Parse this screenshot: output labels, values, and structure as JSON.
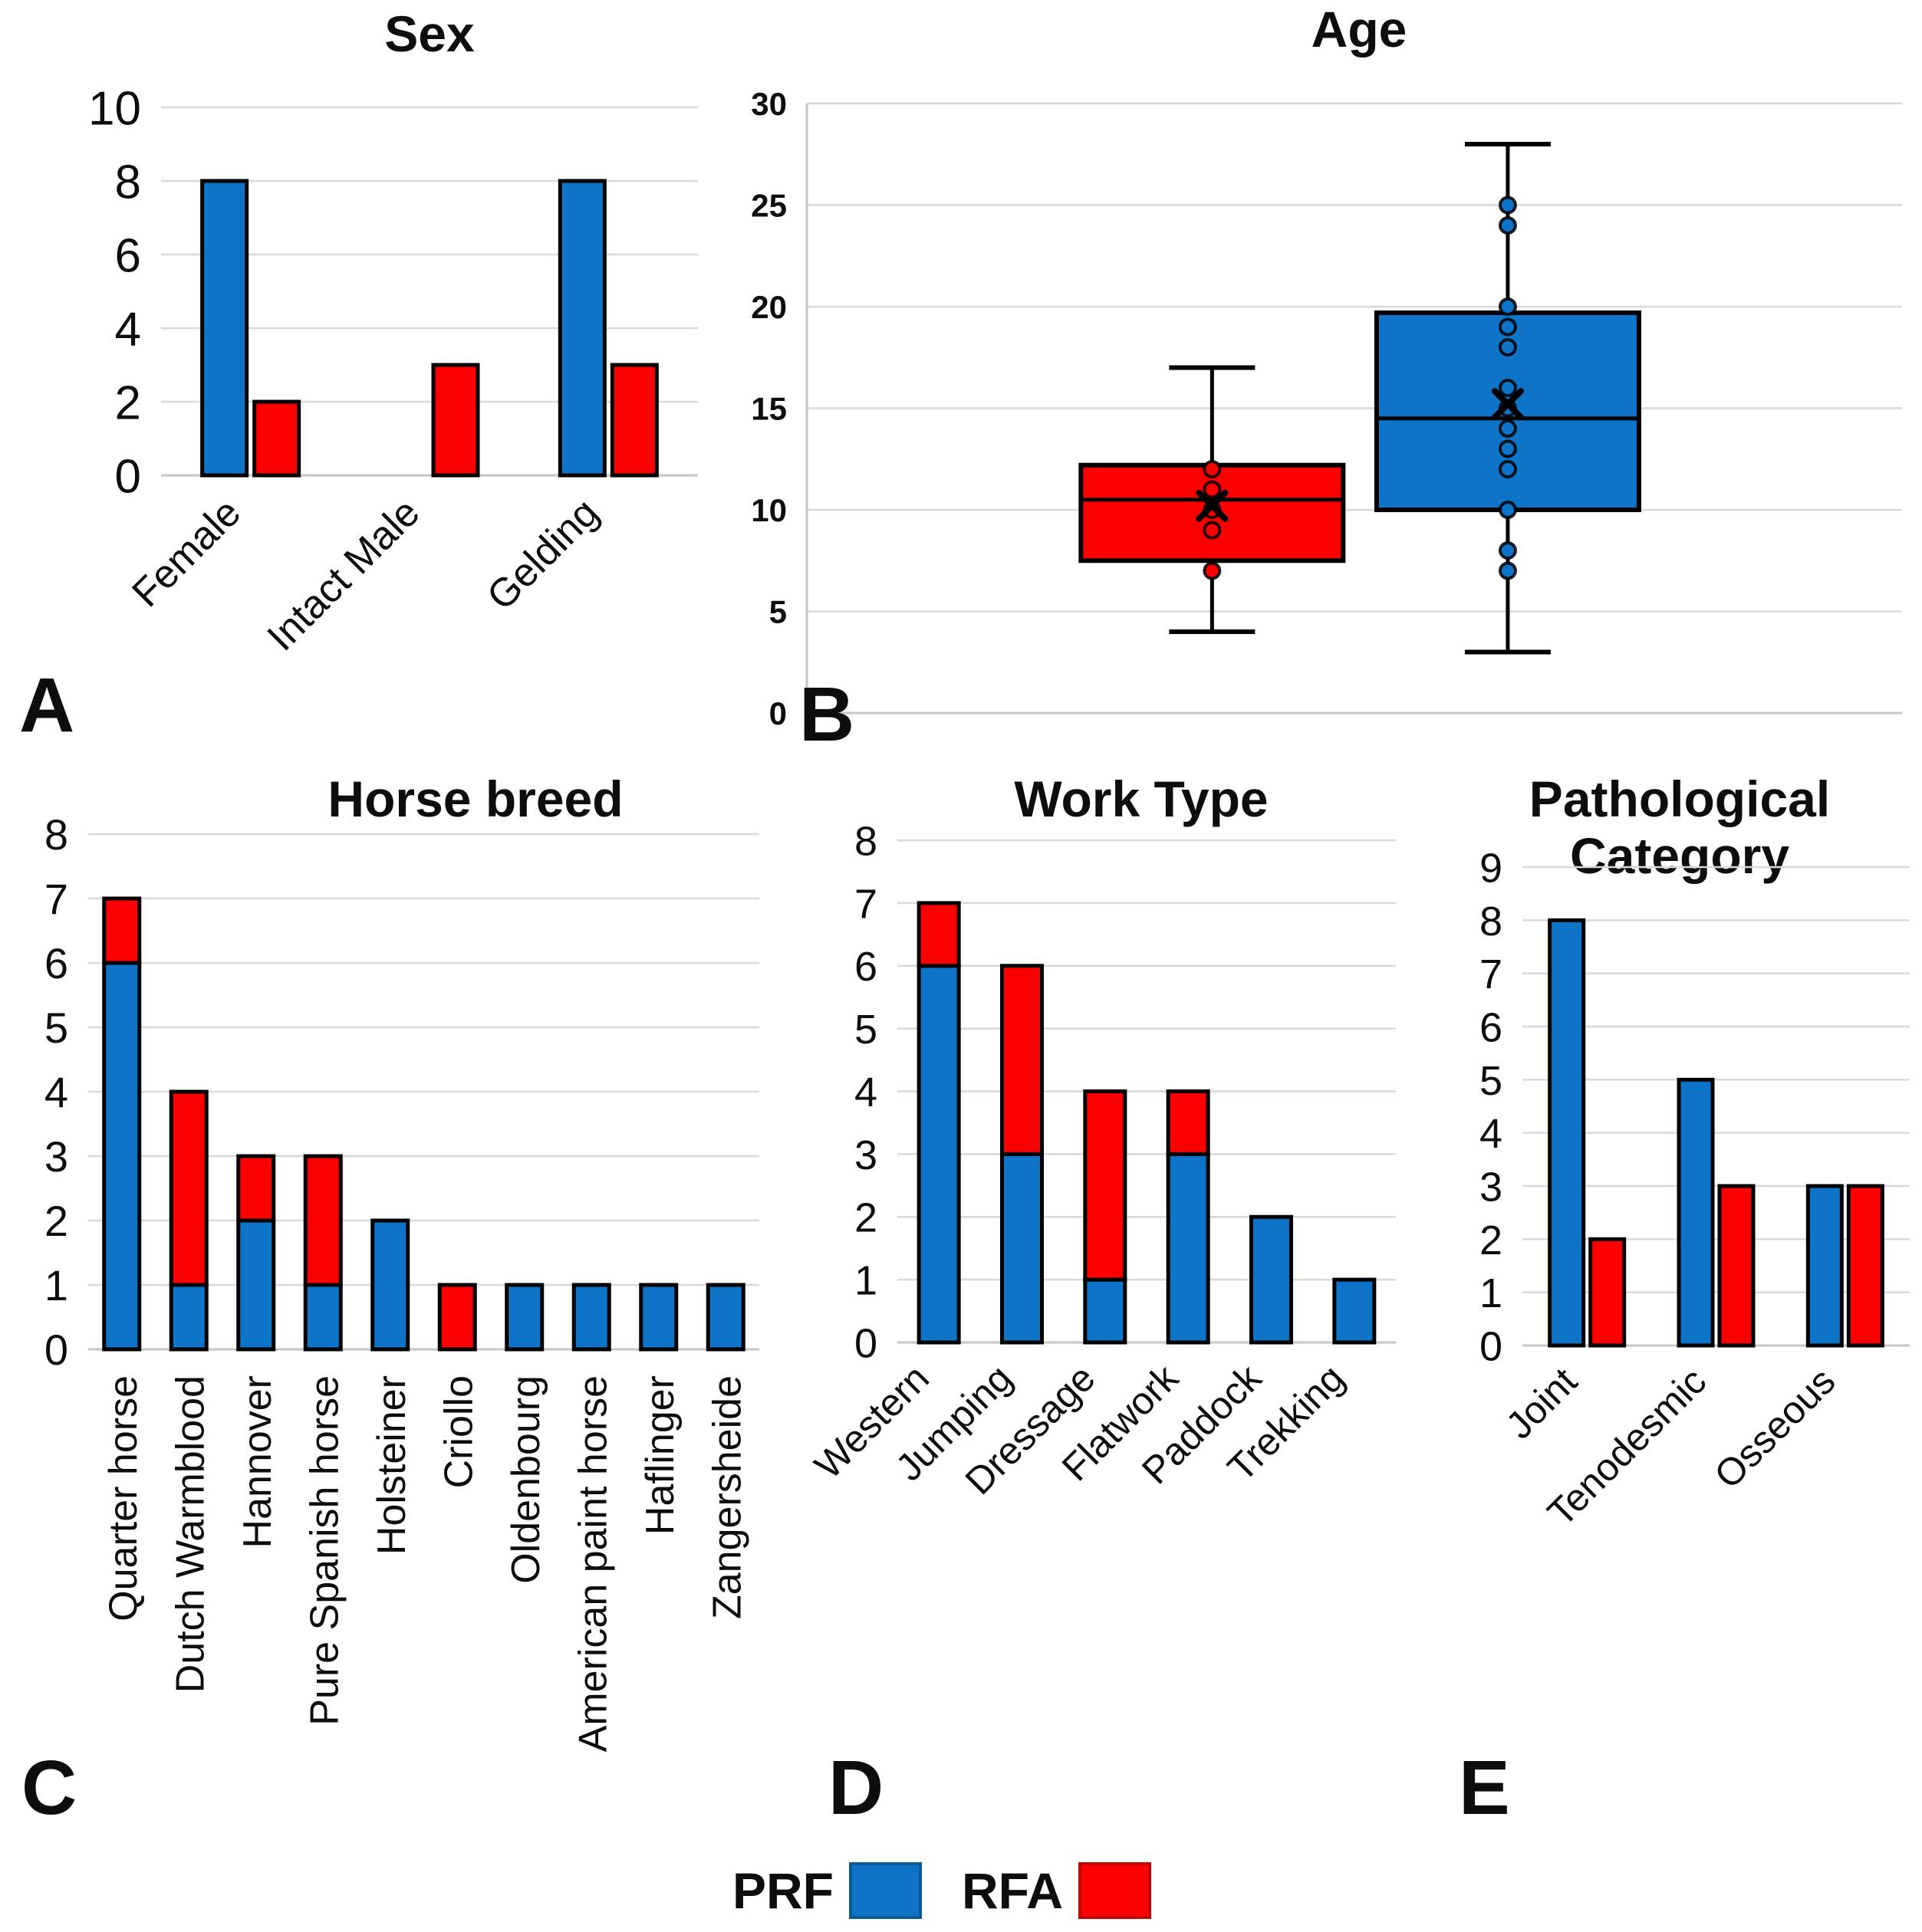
{
  "legend": {
    "items": [
      {
        "label": "PRF",
        "color": "#0d74c8",
        "border": "#0a5a94"
      },
      {
        "label": "RFA",
        "color": "#fa0000",
        "border": "#c40000"
      }
    ]
  },
  "colors": {
    "prf_blue": "#0d74c8",
    "rfa_red": "#fa0000",
    "gridline": "#d9d9d9",
    "baseline": "#c6c6c6",
    "bar_outline": "#000000"
  },
  "chart_data": [
    {
      "id": "sex",
      "letter": "A",
      "title": "Sex",
      "type": "bar",
      "mode": "grouped",
      "categories": [
        "Female",
        "Intact Male",
        "Gelding"
      ],
      "series": [
        {
          "name": "PRF",
          "color": "#0d74c8",
          "values": [
            8,
            0,
            8
          ]
        },
        {
          "name": "RFA",
          "color": "#fa0000",
          "values": [
            2,
            3,
            3
          ]
        }
      ],
      "ylim": [
        0,
        10
      ],
      "yticks": [
        0,
        2,
        4,
        6,
        8,
        10
      ],
      "grid": true,
      "legend_position": "none"
    },
    {
      "id": "age",
      "letter": "B",
      "title": "Age",
      "type": "boxplot",
      "ylim": [
        0,
        30
      ],
      "yticks": [
        0,
        5,
        10,
        15,
        20,
        25,
        30
      ],
      "grid": true,
      "boxes": [
        {
          "name": "RFA",
          "color": "#fa0000",
          "whisker_low": 4,
          "q1": 7.5,
          "median": 10.5,
          "q3": 12.2,
          "whisker_high": 17,
          "mean": 10.2,
          "points": [
            12,
            11,
            10,
            9,
            7
          ]
        },
        {
          "name": "PRF",
          "color": "#0d74c8",
          "whisker_low": 3,
          "q1": 10,
          "median": 14.5,
          "q3": 19.7,
          "whisker_high": 28,
          "mean": 15.2,
          "points": [
            25,
            24,
            20,
            19,
            18,
            16,
            15,
            14,
            13,
            12,
            10,
            8,
            7
          ]
        }
      ]
    },
    {
      "id": "breed",
      "letter": "C",
      "title": "Horse breed",
      "type": "bar",
      "mode": "stacked",
      "categories": [
        "Quarter horse",
        "Dutch Warmblood",
        "Hannover",
        "Pure Spanish horse",
        "Holsteiner",
        "Criollo",
        "Oldenbourg",
        "American paint horse",
        "Haflinger",
        "Zangersheide"
      ],
      "series": [
        {
          "name": "PRF",
          "color": "#0d74c8",
          "values": [
            6,
            1,
            2,
            1,
            2,
            0,
            1,
            1,
            1,
            1
          ]
        },
        {
          "name": "RFA",
          "color": "#fa0000",
          "values": [
            1,
            3,
            1,
            2,
            0,
            1,
            0,
            0,
            0,
            0
          ]
        }
      ],
      "ylim": [
        0,
        8
      ],
      "yticks": [
        0,
        1,
        2,
        3,
        4,
        5,
        6,
        7,
        8
      ],
      "grid": true,
      "legend_position": "none"
    },
    {
      "id": "work",
      "letter": "D",
      "title": "Work Type",
      "type": "bar",
      "mode": "stacked",
      "categories": [
        "Western",
        "Jumping",
        "Dressage",
        "Flatwork",
        "Paddock",
        "Trekking"
      ],
      "series": [
        {
          "name": "PRF",
          "color": "#0d74c8",
          "values": [
            6,
            3,
            1,
            3,
            2,
            1
          ]
        },
        {
          "name": "RFA",
          "color": "#fa0000",
          "values": [
            1,
            3,
            3,
            1,
            0,
            0
          ]
        }
      ],
      "ylim": [
        0,
        8
      ],
      "yticks": [
        0,
        1,
        2,
        3,
        4,
        5,
        6,
        7,
        8
      ],
      "grid": true,
      "legend_position": "none"
    },
    {
      "id": "pathology",
      "letter": "E",
      "title": "Pathological\nCategory",
      "type": "bar",
      "mode": "grouped",
      "categories": [
        "Joint",
        "Tenodesmic",
        "Osseous"
      ],
      "series": [
        {
          "name": "PRF",
          "color": "#0d74c8",
          "values": [
            8,
            5,
            3
          ]
        },
        {
          "name": "RFA",
          "color": "#fa0000",
          "values": [
            2,
            3,
            3
          ]
        }
      ],
      "ylim": [
        0,
        9
      ],
      "yticks": [
        0,
        1,
        2,
        3,
        4,
        5,
        6,
        7,
        8,
        9
      ],
      "grid": true,
      "legend_position": "none"
    }
  ]
}
